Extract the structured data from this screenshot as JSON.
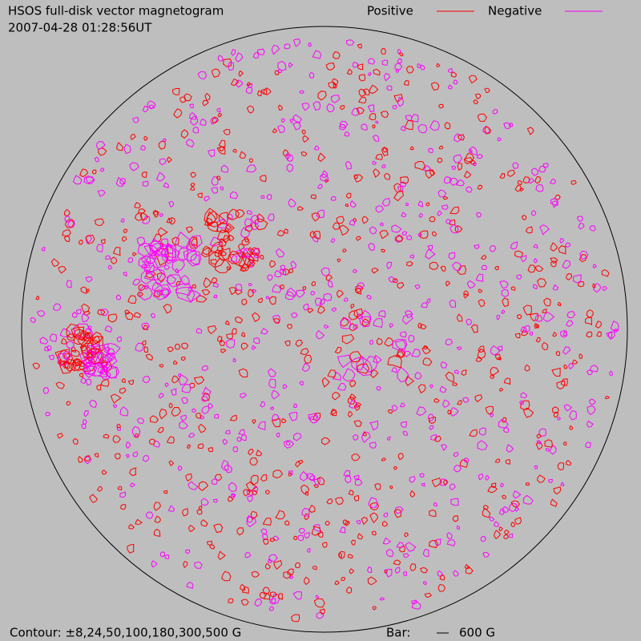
{
  "header": {
    "title": "HSOS full-disk vector magnetogram",
    "timestamp": "2007-04-28 01:28:56UT"
  },
  "legend": [
    {
      "label": "Positive",
      "color": "#ff0000"
    },
    {
      "label": "Negative",
      "color": "#ff00ff"
    }
  ],
  "footer": {
    "contour": "Contour: ±8,24,50,100,180,300,500 G",
    "bar_label": "Bar:",
    "bar_value": "600 G"
  }
}
